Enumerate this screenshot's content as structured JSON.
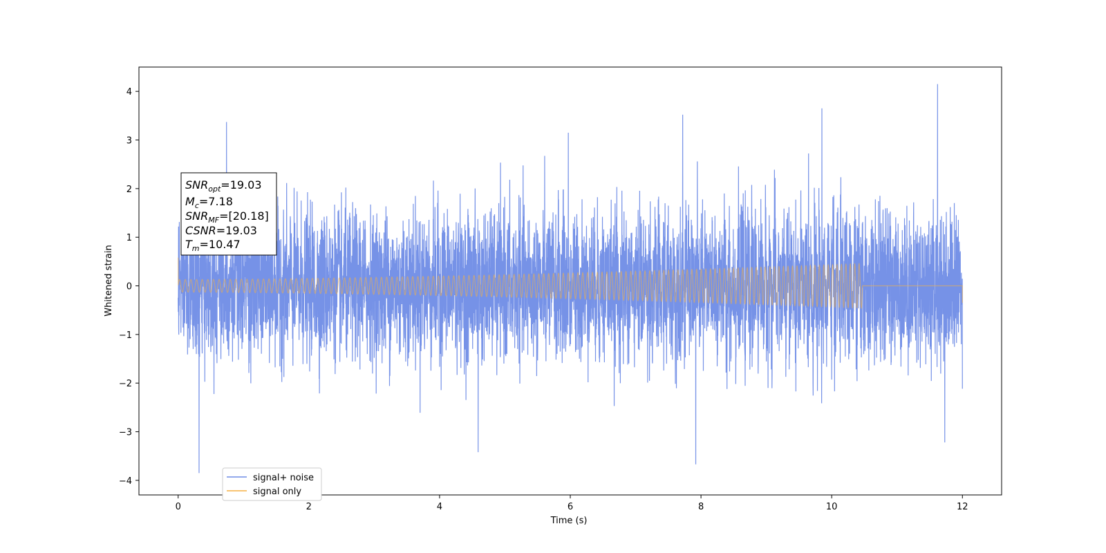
{
  "chart_data": {
    "type": "line",
    "title": "",
    "xlabel": "Time (s)",
    "ylabel": "Whitened strain",
    "xlim": [
      -0.6,
      12.6
    ],
    "ylim": [
      -4.3,
      4.5
    ],
    "xticks": [
      0,
      2,
      4,
      6,
      8,
      10,
      12
    ],
    "xtick_labels": [
      "0",
      "2",
      "4",
      "6",
      "8",
      "10",
      "12"
    ],
    "yticks": [
      -4,
      -3,
      -2,
      -1,
      0,
      1,
      2,
      3,
      4
    ],
    "ytick_labels": [
      "−4",
      "−3",
      "−2",
      "−1",
      "0",
      "1",
      "2",
      "3",
      "4"
    ],
    "grid": false,
    "legend": {
      "placement": "lower-left"
    },
    "series": [
      {
        "name": "signal+ noise",
        "color": "#6f8ce6",
        "x_range": [
          0,
          12
        ],
        "noise_std": 0.72,
        "min": -3.85,
        "max": 4.15,
        "peaks": [
          {
            "x": 0.74,
            "y": 3.37
          },
          {
            "x": 5.97,
            "y": 3.15
          },
          {
            "x": 7.72,
            "y": 3.52
          },
          {
            "x": 9.85,
            "y": 3.65
          },
          {
            "x": 11.62,
            "y": 4.15
          },
          {
            "x": 0.32,
            "y": -3.85
          },
          {
            "x": 4.59,
            "y": -3.42
          },
          {
            "x": 7.92,
            "y": -3.67
          },
          {
            "x": 11.73,
            "y": -3.22
          }
        ]
      },
      {
        "name": "signal only",
        "color": "#f5b042",
        "x_range": [
          0,
          12
        ],
        "chirp_end": 10.47,
        "amplitude_start": 0.13,
        "amplitude_end": 0.46,
        "cycles": 120
      }
    ],
    "annotation": {
      "lines": [
        {
          "sym": "SNR",
          "sub": "opt",
          "value": "=19.03"
        },
        {
          "sym": "M",
          "sub": "c",
          "value": "=7.18"
        },
        {
          "sym": "SNR",
          "sub": "MF",
          "value": "=[20.18]"
        },
        {
          "sym": "CSNR",
          "sub": "",
          "value": "=19.03"
        },
        {
          "sym": "T",
          "sub": "m",
          "value": "=10.47"
        }
      ]
    }
  }
}
